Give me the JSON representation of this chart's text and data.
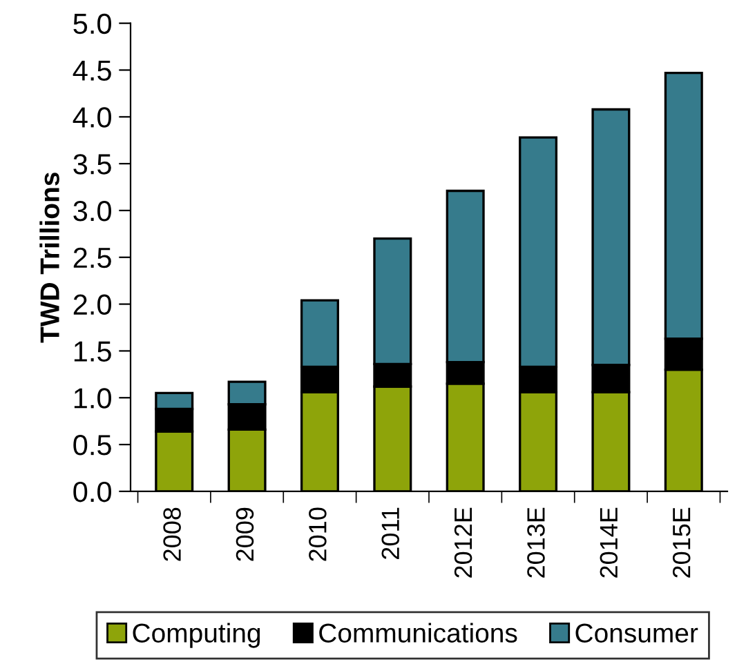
{
  "chart_data": {
    "type": "bar",
    "stacked": true,
    "ylabel": "TWD Trillions",
    "categories": [
      "2008",
      "2009",
      "2010",
      "2011",
      "2012E",
      "2013E",
      "2014E",
      "2015E"
    ],
    "series": [
      {
        "name": "Computing",
        "color": "#8ea40a",
        "values": [
          0.64,
          0.66,
          1.06,
          1.12,
          1.15,
          1.06,
          1.06,
          1.3
        ]
      },
      {
        "name": "Communications",
        "color": "#000000",
        "values": [
          0.24,
          0.27,
          0.27,
          0.24,
          0.23,
          0.27,
          0.29,
          0.33
        ]
      },
      {
        "name": "Consumer",
        "color": "#367b8c",
        "values": [
          0.17,
          0.24,
          0.71,
          1.34,
          1.83,
          2.45,
          2.73,
          2.84
        ]
      }
    ],
    "ylim": [
      0,
      5.0
    ],
    "yticks": [
      {
        "value": 0,
        "label": "0.0"
      },
      {
        "value": 0.5,
        "label": "0.5"
      },
      {
        "value": 1.0,
        "label": "1.0"
      },
      {
        "value": 1.5,
        "label": "1.5"
      },
      {
        "value": 2.0,
        "label": "2.0"
      },
      {
        "value": 2.5,
        "label": "2.5"
      },
      {
        "value": 3.0,
        "label": "3.0"
      },
      {
        "value": 3.5,
        "label": "3.5"
      },
      {
        "value": 4.0,
        "label": "4.0"
      },
      {
        "value": 4.5,
        "label": "4.5"
      },
      {
        "value": 5.0,
        "label": "5.0"
      }
    ],
    "grid": false,
    "legend": "bottom"
  }
}
